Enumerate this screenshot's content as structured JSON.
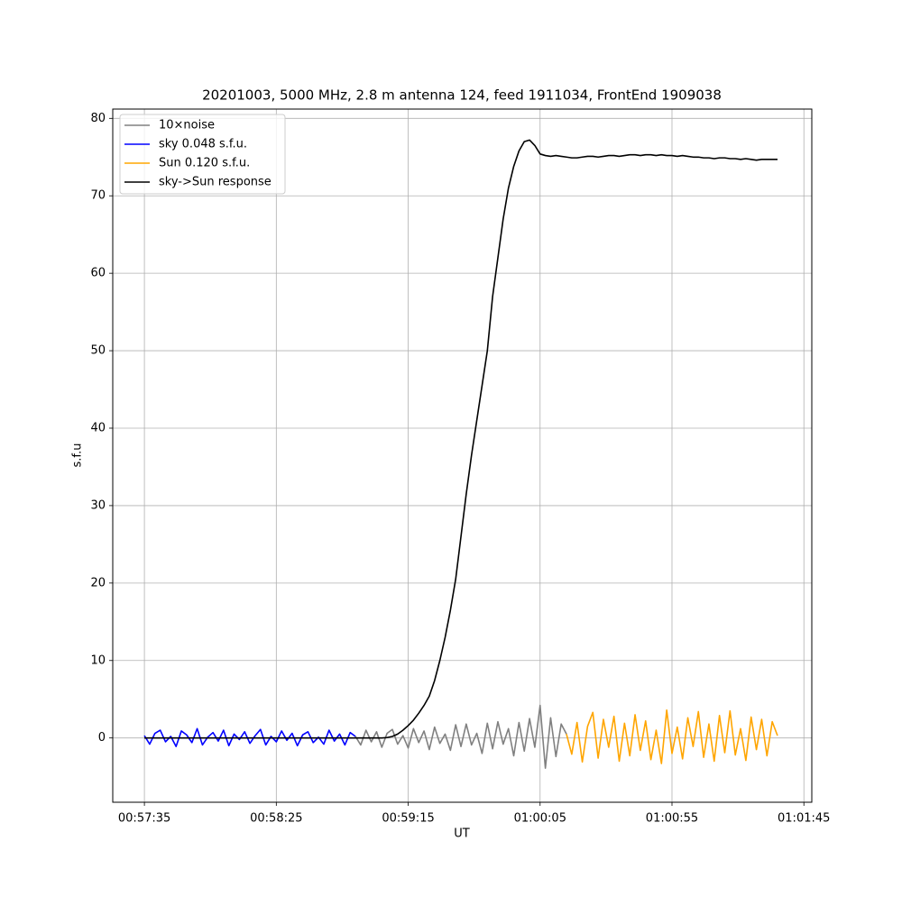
{
  "chart_data": {
    "type": "line",
    "title": "20201003, 5000 MHz, 2.8 m antenna 124, feed 1911034, FrontEnd 1909038",
    "xlabel": "UT",
    "ylabel": "s.f.u",
    "x": [
      "00:57:35",
      "00:57:37",
      "00:57:39",
      "00:57:41",
      "00:57:43",
      "00:57:45",
      "00:57:47",
      "00:57:49",
      "00:57:51",
      "00:57:53",
      "00:57:55",
      "00:57:57",
      "00:57:59",
      "00:58:01",
      "00:58:03",
      "00:58:05",
      "00:58:07",
      "00:58:09",
      "00:58:11",
      "00:58:13",
      "00:58:15",
      "00:58:17",
      "00:58:19",
      "00:58:21",
      "00:58:23",
      "00:58:25",
      "00:58:27",
      "00:58:29",
      "00:58:31",
      "00:58:33",
      "00:58:35",
      "00:58:37",
      "00:58:39",
      "00:58:41",
      "00:58:43",
      "00:58:45",
      "00:58:47",
      "00:58:49",
      "00:58:51",
      "00:58:53",
      "00:58:55",
      "00:58:57",
      "00:58:59",
      "00:59:01",
      "00:59:03",
      "00:59:05",
      "00:59:07",
      "00:59:09",
      "00:59:11",
      "00:59:13",
      "00:59:15",
      "00:59:17",
      "00:59:19",
      "00:59:21",
      "00:59:23",
      "00:59:25",
      "00:59:27",
      "00:59:29",
      "00:59:31",
      "00:59:33",
      "00:59:35",
      "00:59:37",
      "00:59:39",
      "00:59:41",
      "00:59:43",
      "00:59:45",
      "00:59:47",
      "00:59:49",
      "00:59:51",
      "00:59:53",
      "00:59:55",
      "00:59:57",
      "00:59:59",
      "01:00:01",
      "01:00:03",
      "01:00:05",
      "01:00:07",
      "01:00:09",
      "01:00:11",
      "01:00:13",
      "01:00:15",
      "01:00:17",
      "01:00:19",
      "01:00:21",
      "01:00:23",
      "01:00:25",
      "01:00:27",
      "01:00:29",
      "01:00:31",
      "01:00:33",
      "01:00:35",
      "01:00:37",
      "01:00:39",
      "01:00:41",
      "01:00:43",
      "01:00:45",
      "01:00:47",
      "01:00:49",
      "01:00:51",
      "01:00:53",
      "01:00:55",
      "01:00:57",
      "01:00:59",
      "01:01:01",
      "01:01:03",
      "01:01:05",
      "01:01:07",
      "01:01:09",
      "01:01:11",
      "01:01:13",
      "01:01:15",
      "01:01:17",
      "01:01:19",
      "01:01:21",
      "01:01:23",
      "01:01:25",
      "01:01:27",
      "01:01:29",
      "01:01:31",
      "01:01:33",
      "01:01:35"
    ],
    "series": [
      {
        "name": "10×noise",
        "color": "#808080",
        "values": [
          null,
          null,
          null,
          null,
          null,
          null,
          null,
          null,
          null,
          null,
          null,
          null,
          null,
          null,
          null,
          null,
          null,
          null,
          null,
          null,
          null,
          null,
          null,
          null,
          null,
          null,
          null,
          null,
          null,
          null,
          null,
          null,
          null,
          null,
          null,
          null,
          null,
          null,
          null,
          null,
          0.2,
          -0.9,
          1.0,
          -0.5,
          0.8,
          -1.2,
          0.6,
          1.1,
          -0.8,
          0.3,
          -1.3,
          1.2,
          -0.6,
          0.9,
          -1.5,
          1.4,
          -0.7,
          0.5,
          -1.6,
          1.7,
          -1.1,
          1.8,
          -0.9,
          0.6,
          -2.0,
          1.9,
          -1.4,
          2.1,
          -0.8,
          1.2,
          -2.3,
          2.0,
          -1.7,
          2.5,
          -1.2,
          4.2,
          -3.9,
          2.6,
          -2.4,
          1.8,
          0.5,
          null,
          null,
          null,
          null,
          null,
          null,
          null,
          null,
          null,
          null,
          null,
          null,
          null,
          null,
          null,
          null,
          null,
          null,
          null,
          null,
          null,
          null,
          null,
          null,
          null,
          null,
          null,
          null,
          null,
          null,
          null,
          null,
          null,
          null,
          null,
          null,
          null,
          null,
          null,
          null
        ]
      },
      {
        "name": "sky 0.048 s.f.u.",
        "color": "#0000ff",
        "values": [
          0.3,
          -0.8,
          0.6,
          1.0,
          -0.5,
          0.2,
          -1.1,
          0.9,
          0.4,
          -0.6,
          1.2,
          -0.9,
          0.1,
          0.7,
          -0.4,
          1.0,
          -1.0,
          0.5,
          -0.2,
          0.8,
          -0.7,
          0.3,
          1.1,
          -0.9,
          0.2,
          -0.5,
          0.9,
          -0.3,
          0.6,
          -1.0,
          0.4,
          0.8,
          -0.6,
          0.1,
          -0.8,
          1.0,
          -0.4,
          0.5,
          -0.9,
          0.7,
          0.2,
          null,
          null,
          null,
          null,
          null,
          null,
          null,
          null,
          null,
          null,
          null,
          null,
          null,
          null,
          null,
          null,
          null,
          null,
          null,
          null,
          null,
          null,
          null,
          null,
          null,
          null,
          null,
          null,
          null,
          null,
          null,
          null,
          null,
          null,
          null,
          null,
          null,
          null,
          null,
          null,
          null,
          null,
          null,
          null,
          null,
          null,
          null,
          null,
          null,
          null,
          null,
          null,
          null,
          null,
          null,
          null,
          null,
          null,
          null,
          null,
          null,
          null,
          null,
          null,
          null,
          null,
          null,
          null,
          null,
          null,
          null,
          null,
          null,
          null,
          null,
          null,
          null,
          null,
          null,
          null
        ]
      },
      {
        "name": "Sun 0.120 s.f.u.",
        "color": "#ffa500",
        "values": [
          null,
          null,
          null,
          null,
          null,
          null,
          null,
          null,
          null,
          null,
          null,
          null,
          null,
          null,
          null,
          null,
          null,
          null,
          null,
          null,
          null,
          null,
          null,
          null,
          null,
          null,
          null,
          null,
          null,
          null,
          null,
          null,
          null,
          null,
          null,
          null,
          null,
          null,
          null,
          null,
          null,
          null,
          null,
          null,
          null,
          null,
          null,
          null,
          null,
          null,
          null,
          null,
          null,
          null,
          null,
          null,
          null,
          null,
          null,
          null,
          null,
          null,
          null,
          null,
          null,
          null,
          null,
          null,
          null,
          null,
          null,
          null,
          null,
          null,
          null,
          null,
          null,
          null,
          null,
          null,
          0.5,
          -2.1,
          2.0,
          -3.1,
          1.5,
          3.3,
          -2.6,
          2.4,
          -1.2,
          2.8,
          -3.0,
          1.9,
          -2.3,
          3.0,
          -1.6,
          2.2,
          -2.8,
          1.0,
          -3.3,
          3.6,
          -2.0,
          1.4,
          -2.7,
          2.6,
          -1.1,
          3.4,
          -2.5,
          1.8,
          -3.0,
          2.9,
          -1.9,
          3.5,
          -2.2,
          1.2,
          -2.9,
          2.7,
          -1.5,
          2.4,
          -2.3,
          2.1,
          0.3
        ]
      },
      {
        "name": "sky->Sun response",
        "color": "#000000",
        "values": [
          0,
          0,
          0,
          0,
          0,
          0,
          0,
          0,
          0,
          0,
          0,
          0,
          0,
          0,
          0,
          0,
          0,
          0,
          0,
          0,
          0,
          0,
          0,
          0,
          0,
          0,
          0,
          0,
          0,
          0,
          0,
          0,
          0,
          0,
          0,
          0,
          0,
          0,
          0,
          0,
          0,
          0,
          0,
          0,
          0,
          0,
          0.05,
          0.2,
          0.5,
          1,
          1.6,
          2.3,
          3.2,
          4.2,
          5.4,
          7.4,
          10,
          13,
          16.5,
          20.5,
          26,
          31.5,
          36.5,
          41,
          45.5,
          50,
          57,
          62,
          67,
          71,
          73.8,
          75.8,
          77,
          77.2,
          76.5,
          75.4,
          75.2,
          75.1,
          75.2,
          75.1,
          75.0,
          74.9,
          74.9,
          75.0,
          75.1,
          75.1,
          75.0,
          75.1,
          75.2,
          75.2,
          75.1,
          75.2,
          75.3,
          75.3,
          75.2,
          75.3,
          75.3,
          75.2,
          75.3,
          75.2,
          75.2,
          75.1,
          75.2,
          75.1,
          75.0,
          75.0,
          74.9,
          74.9,
          74.8,
          74.9,
          74.9,
          74.8,
          74.8,
          74.7,
          74.8,
          74.7,
          74.6,
          74.7,
          74.7,
          74.7,
          74.7
        ]
      }
    ],
    "xlim": [
      "00:57:23",
      "01:01:48"
    ],
    "xticks": [
      "00:57:35",
      "00:58:25",
      "00:59:15",
      "01:00:05",
      "01:00:55",
      "01:01:45"
    ],
    "ylim": [
      -8.3,
      81.2
    ],
    "yticks": [
      0,
      10,
      20,
      30,
      40,
      50,
      60,
      70,
      80
    ],
    "grid": true,
    "legend": "upper left"
  }
}
